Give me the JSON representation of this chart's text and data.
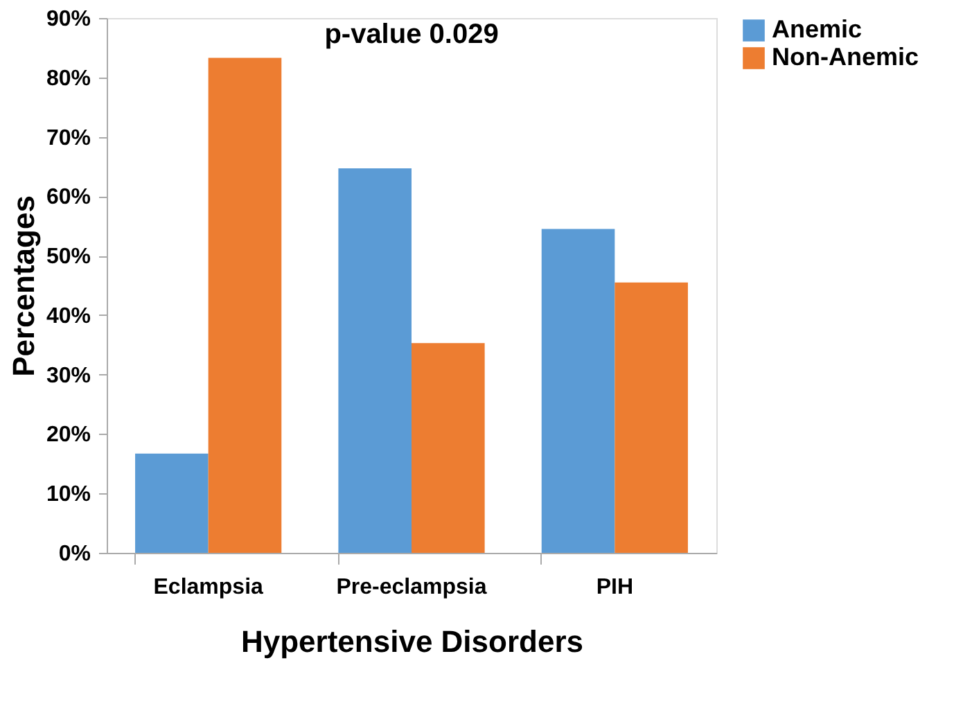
{
  "chart_data": {
    "type": "bar",
    "title": "p-value 0.029",
    "xlabel": "Hypertensive Disorders",
    "ylabel": "Percentages",
    "categories": [
      "Eclampsia",
      "Pre-eclampsia",
      "PIH"
    ],
    "series": [
      {
        "name": "Anemic",
        "color": "#5b9bd5",
        "values": [
          16.7,
          64.7,
          54.5
        ]
      },
      {
        "name": "Non-Anemic",
        "color": "#ed7d31",
        "values": [
          83.3,
          35.3,
          45.5
        ]
      }
    ],
    "ylim": [
      0,
      90
    ],
    "yticks": [
      {
        "value": 0,
        "label": "0%"
      },
      {
        "value": 10,
        "label": "10%"
      },
      {
        "value": 20,
        "label": "20%"
      },
      {
        "value": 30,
        "label": "30%"
      },
      {
        "value": 40,
        "label": "40%"
      },
      {
        "value": 50,
        "label": "50%"
      },
      {
        "value": 60,
        "label": "60%"
      },
      {
        "value": 70,
        "label": "70%"
      },
      {
        "value": 80,
        "label": "80%"
      },
      {
        "value": 90,
        "label": "90%"
      }
    ],
    "grid": false,
    "legend": "right"
  }
}
